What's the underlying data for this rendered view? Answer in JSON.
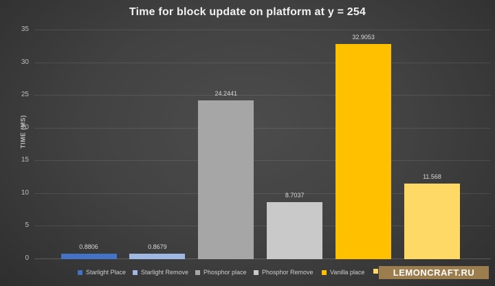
{
  "title": "Time for block update on platform at y = 254",
  "y_axis": {
    "label": "TIME (MS)",
    "ticks": [
      0,
      5,
      10,
      15,
      20,
      25,
      30,
      35
    ]
  },
  "chart_data": {
    "type": "bar",
    "title": "Time for block update on platform at y = 254",
    "xlabel": "",
    "ylabel": "TIME (MS)",
    "ylim": [
      0,
      35
    ],
    "grid": true,
    "legend_position": "bottom",
    "series": [
      {
        "name": "Starlight Place",
        "value": 0.8806,
        "label": "0.8806",
        "color": "#4472C4"
      },
      {
        "name": "Starlight Remove",
        "value": 0.8679,
        "label": "0.8679",
        "color": "#9FB8E2"
      },
      {
        "name": "Phosphor place",
        "value": 24.2441,
        "label": "24.2441",
        "color": "#A6A6A6"
      },
      {
        "name": "Phosphor Remove",
        "value": 8.7037,
        "label": "8.7037",
        "color": "#C9C9C9"
      },
      {
        "name": "Vanilla place",
        "value": 32.9053,
        "label": "32.9053",
        "color": "#FFC000"
      },
      {
        "name": "",
        "value": 11.568,
        "label": "11.568",
        "color": "#FFD966"
      }
    ]
  },
  "legend": {
    "items": [
      {
        "label": "Starlight Place",
        "color": "#4472C4"
      },
      {
        "label": "Starlight Remove",
        "color": "#9FB8E2"
      },
      {
        "label": "Phosphor place",
        "color": "#A6A6A6"
      },
      {
        "label": "Phosphor Remove",
        "color": "#C9C9C9"
      },
      {
        "label": "Vanilla place",
        "color": "#FFC000"
      },
      {
        "label": "",
        "color": "#FFD966"
      }
    ]
  },
  "watermark": {
    "text": "LEMONCRAFT.RU",
    "bg_color": "#9C7D4E",
    "text_color": "#FFFFFF"
  }
}
